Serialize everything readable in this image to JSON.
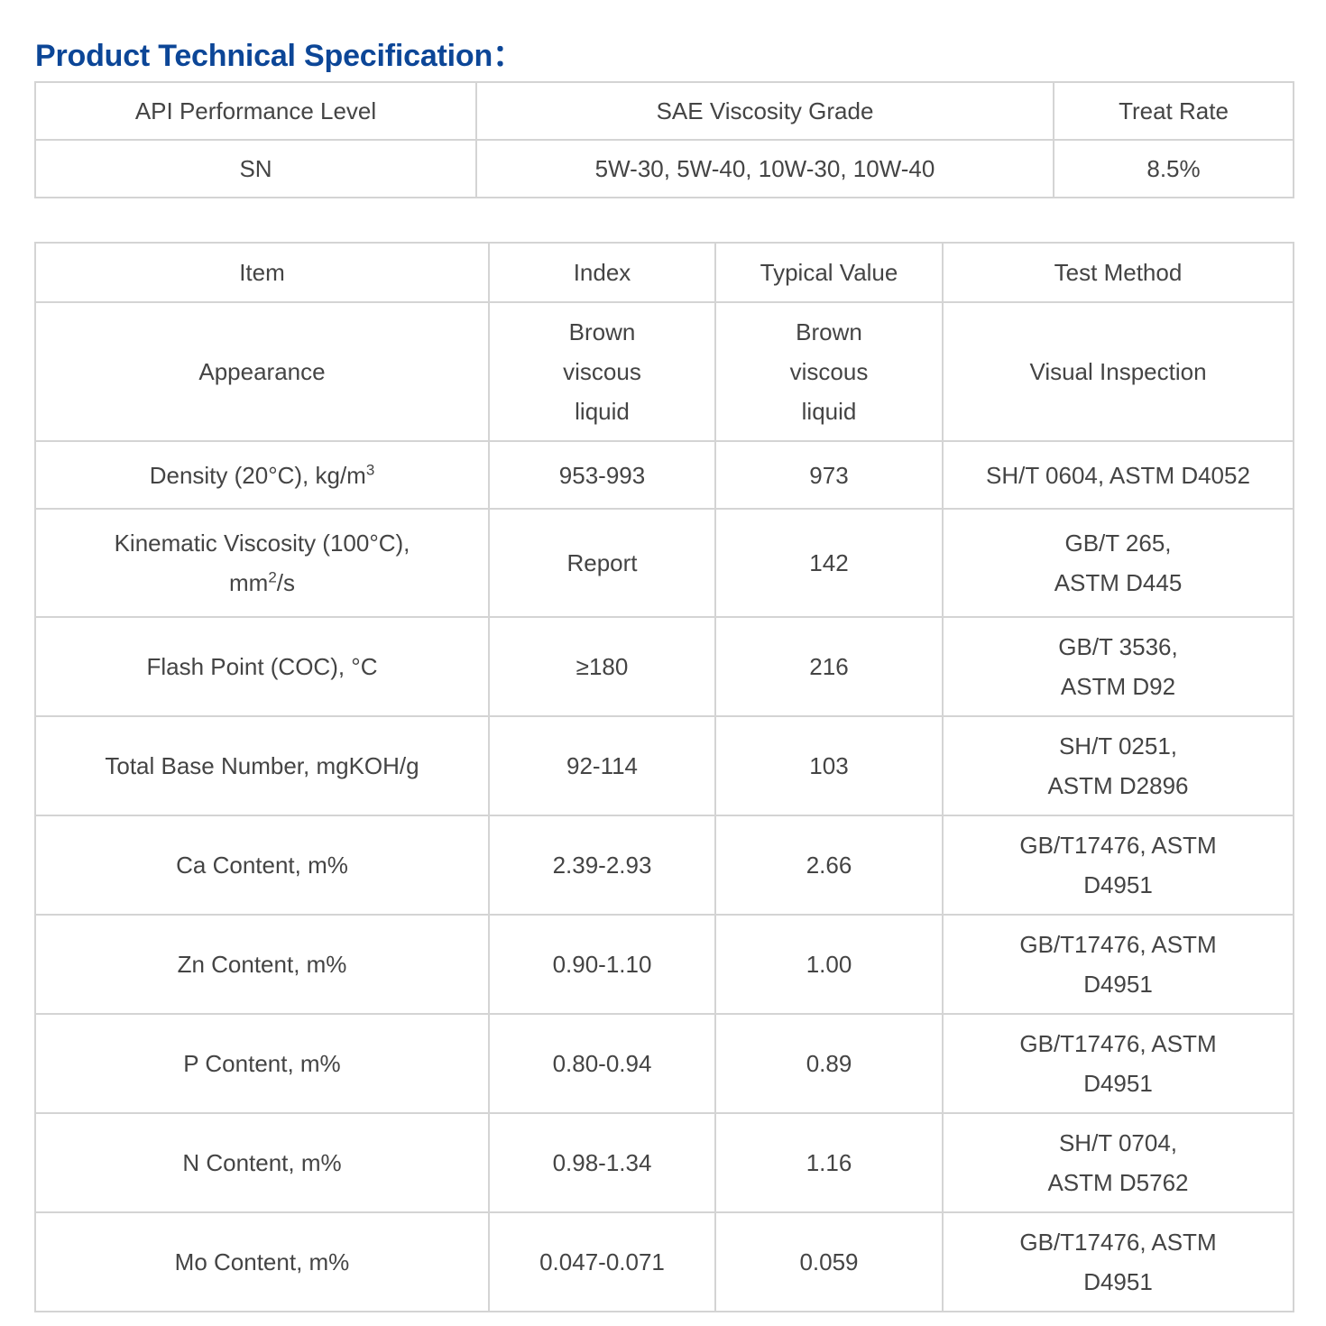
{
  "title": "Product Technical Specification：",
  "table1": {
    "headers": [
      "API Performance Level",
      "SAE Viscosity Grade",
      "Treat Rate"
    ],
    "row": [
      "SN",
      "5W-30, 5W-40, 10W-30, 10W-40",
      "8.5%"
    ]
  },
  "table2": {
    "headers": [
      "Item",
      "Index",
      "Typical Value",
      "Test Method"
    ],
    "rows": [
      {
        "item": "Appearance",
        "index": [
          "Brown",
          "viscous",
          "liquid"
        ],
        "typical": [
          "Brown",
          "viscous",
          "liquid"
        ],
        "method": [
          "Visual Inspection"
        ]
      },
      {
        "item": "Density (20°C), kg/m",
        "item_sup": "3",
        "index": [
          "953-993"
        ],
        "typical": [
          "973"
        ],
        "method": [
          "SH/T 0604, ASTM D4052"
        ]
      },
      {
        "item_lines": [
          "Kinematic Viscosity (100°C),",
          "mm"
        ],
        "item_sup": "2",
        "item_tail": "/s",
        "index": [
          "Report"
        ],
        "typical": [
          "142"
        ],
        "method": [
          "GB/T 265,",
          "ASTM D445"
        ]
      },
      {
        "item": "Flash Point (COC), °C",
        "index": [
          "≥180"
        ],
        "typical": [
          "216"
        ],
        "method": [
          "GB/T 3536,",
          "ASTM D92"
        ]
      },
      {
        "item": "Total Base Number, mgKOH/g",
        "index": [
          "92-114"
        ],
        "typical": [
          "103"
        ],
        "method": [
          "SH/T 0251,",
          "ASTM D2896"
        ]
      },
      {
        "item": "Ca Content, m%",
        "index": [
          "2.39-2.93"
        ],
        "typical": [
          "2.66"
        ],
        "method": [
          "GB/T17476, ASTM",
          "D4951"
        ]
      },
      {
        "item": "Zn Content, m%",
        "index": [
          "0.90-1.10"
        ],
        "typical": [
          "1.00"
        ],
        "method": [
          "GB/T17476, ASTM",
          "D4951"
        ]
      },
      {
        "item": "P Content, m%",
        "index": [
          "0.80-0.94"
        ],
        "typical": [
          "0.89"
        ],
        "method": [
          "GB/T17476, ASTM",
          "D4951"
        ]
      },
      {
        "item": "N Content, m%",
        "index": [
          "0.98-1.34"
        ],
        "typical": [
          "1.16"
        ],
        "method": [
          "SH/T 0704,",
          "ASTM D5762"
        ]
      },
      {
        "item": "Mo Content, m%",
        "index": [
          "0.047-0.071"
        ],
        "typical": [
          "0.059"
        ],
        "method": [
          "GB/T17476, ASTM",
          "D4951"
        ]
      }
    ]
  }
}
